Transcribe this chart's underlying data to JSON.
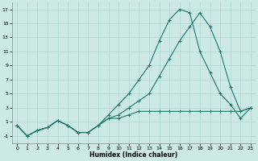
{
  "xlabel": "Humidex (Indice chaleur)",
  "background_color": "#cce9e5",
  "grid_color": "#b0d8d0",
  "line_color": "#1a7a6e",
  "xlim": [
    -0.5,
    23.5
  ],
  "ylim": [
    -2,
    18
  ],
  "xticks": [
    0,
    1,
    2,
    3,
    4,
    5,
    6,
    7,
    8,
    9,
    10,
    11,
    12,
    13,
    14,
    15,
    16,
    17,
    18,
    19,
    20,
    21,
    22,
    23
  ],
  "yticks": [
    -1,
    1,
    3,
    5,
    7,
    9,
    11,
    13,
    15,
    17
  ],
  "series1_x": [
    0,
    1,
    2,
    3,
    4,
    5,
    6,
    7,
    8,
    9,
    10,
    11,
    12,
    13,
    14,
    15,
    16,
    17,
    18,
    19,
    20,
    21,
    22,
    23
  ],
  "series1_y": [
    0.5,
    -1.0,
    -0.2,
    0.2,
    1.2,
    0.5,
    -0.5,
    -0.5,
    0.5,
    1.5,
    1.5,
    2.0,
    2.5,
    2.5,
    2.5,
    2.5,
    2.5,
    2.5,
    2.5,
    2.5,
    2.5,
    2.5,
    2.5,
    3.0
  ],
  "series2_x": [
    0,
    1,
    2,
    3,
    4,
    5,
    6,
    7,
    8,
    9,
    10,
    11,
    12,
    13,
    14,
    15,
    16,
    17,
    18,
    19,
    20,
    21,
    22,
    23
  ],
  "series2_y": [
    0.5,
    -1.0,
    -0.2,
    0.2,
    1.2,
    0.5,
    -0.5,
    -0.5,
    0.5,
    2.0,
    3.5,
    5.0,
    7.0,
    9.0,
    12.5,
    15.5,
    17.0,
    16.5,
    11.0,
    8.0,
    5.0,
    3.5,
    1.5,
    3.0
  ],
  "series3_x": [
    0,
    1,
    2,
    3,
    4,
    5,
    6,
    7,
    8,
    9,
    10,
    11,
    12,
    13,
    14,
    15,
    16,
    17,
    18,
    19,
    20,
    21,
    22,
    23
  ],
  "series3_y": [
    0.5,
    -1.0,
    -0.2,
    0.2,
    1.2,
    0.5,
    -0.5,
    -0.5,
    0.5,
    1.5,
    2.0,
    3.0,
    4.0,
    5.0,
    7.5,
    10.0,
    12.5,
    14.5,
    16.5,
    14.5,
    11.0,
    6.0,
    2.5,
    3.0
  ]
}
